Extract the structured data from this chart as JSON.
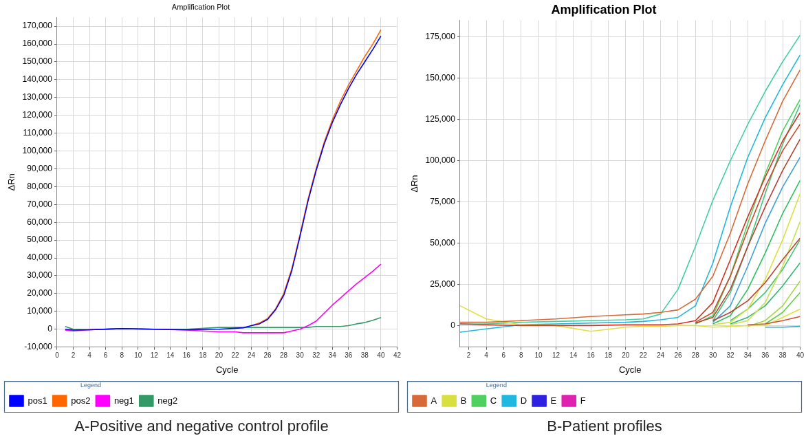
{
  "chart_data": [
    {
      "type": "line",
      "title": "Amplification Plot",
      "xlabel": "Cycle",
      "ylabel": "ΔRn",
      "legend_title": "Legend",
      "legend": "bottom",
      "grid": true,
      "marker": "none",
      "line_style": "solid",
      "xlim": [
        0,
        42
      ],
      "xticks": [
        0,
        2,
        4,
        6,
        8,
        10,
        12,
        14,
        16,
        18,
        20,
        22,
        24,
        26,
        28,
        30,
        32,
        34,
        36,
        38,
        40,
        42
      ],
      "ylim": [
        -10000,
        175000
      ],
      "yticks": [
        {
          "value": -10000,
          "label": "-10,000"
        },
        0,
        {
          "value": 10000,
          "label": "10,000"
        },
        {
          "value": 20000,
          "label": "20,000"
        },
        {
          "value": 30000,
          "label": "30,000"
        },
        {
          "value": 40000,
          "label": "40,000"
        },
        {
          "value": 50000,
          "label": "50,000"
        },
        {
          "value": 60000,
          "label": "60,000"
        },
        {
          "value": 70000,
          "label": "70,000"
        },
        {
          "value": 80000,
          "label": "80,000"
        },
        {
          "value": 90000,
          "label": "90,000"
        },
        {
          "value": 100000,
          "label": "100,000"
        },
        {
          "value": 110000,
          "label": "110,000"
        },
        {
          "value": 120000,
          "label": "120,000"
        },
        {
          "value": 130000,
          "label": "130,000"
        },
        {
          "value": 140000,
          "label": "140,000"
        },
        {
          "value": 150000,
          "label": "150,000"
        },
        {
          "value": 160000,
          "label": "160,000"
        },
        {
          "value": 170000,
          "label": "170,000"
        }
      ],
      "x": [
        1,
        2,
        4,
        8,
        12,
        16,
        20,
        22,
        23,
        24,
        25,
        26,
        27,
        28,
        29,
        30,
        31,
        32,
        33,
        34,
        35,
        36,
        37,
        38,
        39,
        40
      ],
      "annotations": [
        "A-Positive and negative control profile"
      ],
      "series": [
        {
          "name": "pos1",
          "color": "#0000ff",
          "values": [
            0,
            -500,
            -300,
            300,
            0,
            -300,
            0,
            500,
            800,
            2000,
            3000,
            5500,
            11000,
            19000,
            33000,
            52000,
            72000,
            89000,
            104000,
            116000,
            126000,
            135000,
            143000,
            150000,
            157000,
            164500
          ]
        },
        {
          "name": "pos2",
          "color": "#ff6600",
          "values": [
            null,
            null,
            null,
            null,
            null,
            null,
            null,
            null,
            null,
            2000,
            3500,
            6000,
            11500,
            20000,
            34000,
            53000,
            73000,
            90000,
            105000,
            117500,
            128000,
            137000,
            145000,
            153000,
            160000,
            168000
          ]
        },
        {
          "name": "neg1",
          "color": "#ff00ff",
          "values": [
            -500,
            -1000,
            -300,
            300,
            0,
            -500,
            -1500,
            -1500,
            -2000,
            -2000,
            -2000,
            -2000,
            -2000,
            -2000,
            -1000,
            0,
            2000,
            4500,
            9000,
            13500,
            17500,
            21500,
            25500,
            29000,
            32500,
            36500
          ]
        },
        {
          "name": "neg2",
          "color": "#339966",
          "values": [
            1500,
            0,
            -300,
            300,
            0,
            0,
            1000,
            1000,
            1000,
            1000,
            1000,
            1000,
            1000,
            1000,
            1000,
            1000,
            1000,
            1500,
            1500,
            1500,
            1500,
            2000,
            3000,
            3700,
            5000,
            6500
          ]
        }
      ]
    },
    {
      "type": "line",
      "title": "Amplification Plot",
      "xlabel": "Cycle",
      "ylabel": "ΔRn",
      "legend_title": "Legend",
      "legend": "bottom",
      "grid": true,
      "marker": "none",
      "line_style": "solid",
      "xlim": [
        1,
        40
      ],
      "xticks": [
        2,
        4,
        6,
        8,
        10,
        12,
        14,
        16,
        18,
        20,
        22,
        24,
        26,
        28,
        30,
        32,
        34,
        36,
        38,
        40
      ],
      "ylim": [
        -13000,
        185000
      ],
      "yticks": [
        0,
        {
          "value": 25000,
          "label": "25,000"
        },
        {
          "value": 50000,
          "label": "50,000"
        },
        {
          "value": 75000,
          "label": "75,000"
        },
        {
          "value": 100000,
          "label": "100,000"
        },
        {
          "value": 125000,
          "label": "125,000"
        },
        {
          "value": 150000,
          "label": "150,000"
        },
        {
          "value": 175000,
          "label": "175,000"
        }
      ],
      "x": [
        1,
        4,
        8,
        12,
        16,
        20,
        22,
        24,
        26,
        28,
        30,
        32,
        34,
        36,
        38,
        40
      ],
      "annotations": [
        "B-Patient profiles"
      ],
      "series": [
        {
          "name": "A",
          "color": "#d86a3a",
          "values": [
            2000,
            2000,
            3000,
            4000,
            5500,
            6500,
            7000,
            8000,
            9500,
            16000,
            30000,
            56000,
            86000,
            112000,
            136000,
            155000
          ]
        },
        {
          "color": "#d83020",
          "values": [
            1000,
            500,
            0,
            0,
            0,
            500,
            500,
            500,
            1000,
            3000,
            14000,
            40000,
            66000,
            90000,
            112000,
            129000
          ]
        },
        {
          "color": "#c84a2a",
          "values": [
            null,
            null,
            null,
            null,
            null,
            null,
            null,
            null,
            null,
            2000,
            8000,
            30000,
            58000,
            84000,
            106000,
            122000
          ]
        },
        {
          "color": "#b84030",
          "values": [
            null,
            null,
            null,
            null,
            null,
            null,
            null,
            null,
            null,
            1500,
            5000,
            22000,
            48000,
            72000,
            94000,
            113000
          ]
        },
        {
          "color": "#c04030",
          "values": [
            null,
            null,
            null,
            null,
            null,
            null,
            null,
            null,
            null,
            null,
            3000,
            8000,
            15000,
            26000,
            40000,
            53000
          ]
        },
        {
          "color": "#d05030",
          "values": [
            null,
            null,
            null,
            null,
            null,
            null,
            null,
            null,
            null,
            null,
            null,
            null,
            500,
            1000,
            3000,
            5500
          ]
        },
        {
          "name": "B",
          "color": "#d8e040",
          "values": [
            null,
            null,
            null,
            null,
            null,
            null,
            null,
            null,
            null,
            null,
            500,
            2000,
            10000,
            28000,
            52000,
            80000
          ]
        },
        {
          "color": "#c8e050",
          "values": [
            null,
            null,
            null,
            null,
            null,
            null,
            null,
            null,
            null,
            null,
            null,
            500,
            3000,
            14000,
            36000,
            63000
          ]
        },
        {
          "color": "#a0d840",
          "values": [
            null,
            null,
            null,
            null,
            null,
            null,
            null,
            null,
            null,
            null,
            null,
            null,
            -500,
            3000,
            12000,
            27000
          ]
        },
        {
          "color": "#e0e040",
          "values": [
            12000,
            4000,
            500,
            0,
            -3500,
            -1000,
            -500,
            -500,
            0,
            0,
            -1000,
            -500,
            0,
            0,
            5000,
            10000
          ]
        },
        {
          "name": "C",
          "color": "#50d060",
          "values": [
            null,
            null,
            null,
            null,
            null,
            null,
            null,
            null,
            null,
            1000,
            6000,
            30000,
            62000,
            92000,
            118000,
            137000
          ]
        },
        {
          "color": "#40c880",
          "values": [
            null,
            null,
            null,
            null,
            null,
            null,
            null,
            null,
            null,
            null,
            3000,
            20000,
            48000,
            80000,
            110000,
            134000
          ]
        },
        {
          "color": "#30c060",
          "values": [
            null,
            null,
            null,
            null,
            null,
            null,
            null,
            null,
            null,
            null,
            1000,
            6000,
            22000,
            44000,
            68000,
            88000
          ]
        },
        {
          "color": "#40c870",
          "values": [
            null,
            null,
            null,
            null,
            null,
            null,
            null,
            null,
            null,
            null,
            null,
            3000,
            10000,
            20000,
            34000,
            52000
          ]
        },
        {
          "color": "#30b870",
          "values": [
            null,
            null,
            null,
            null,
            null,
            null,
            null,
            null,
            null,
            null,
            null,
            1000,
            5000,
            12000,
            24000,
            38000
          ]
        },
        {
          "color": "#60d040",
          "values": [
            null,
            null,
            null,
            null,
            null,
            null,
            null,
            null,
            null,
            null,
            null,
            null,
            null,
            1000,
            8000,
            20000
          ]
        },
        {
          "name": "D",
          "color": "#20b8e0",
          "values": [
            -4000,
            -2000,
            500,
            1000,
            1500,
            2000,
            2500,
            3500,
            5000,
            12000,
            38000,
            72000,
            102000,
            126000,
            146000,
            164000
          ]
        },
        {
          "color": "#40d0a0",
          "values": [
            1000,
            1000,
            2000,
            2500,
            3000,
            3500,
            4000,
            7000,
            22000,
            48000,
            76000,
            100000,
            122000,
            142000,
            160000,
            176000
          ]
        },
        {
          "color": "#40a0d8",
          "values": [
            null,
            null,
            null,
            null,
            null,
            null,
            null,
            null,
            null,
            null,
            2000,
            12000,
            36000,
            62000,
            84000,
            102000
          ]
        },
        {
          "color": "#30a8d0",
          "values": [
            null,
            null,
            null,
            null,
            null,
            null,
            null,
            null,
            null,
            null,
            null,
            null,
            null,
            -1000,
            -1000,
            -500
          ]
        },
        {
          "name": "E",
          "color": "#3020e0",
          "values": [
            null,
            null,
            null,
            null,
            null,
            null,
            null,
            null,
            null,
            null,
            null,
            null,
            null,
            null,
            null,
            null
          ]
        },
        {
          "name": "F",
          "color": "#e020b0",
          "values": [
            null,
            null,
            null,
            null,
            null,
            null,
            null,
            null,
            null,
            null,
            null,
            null,
            null,
            null,
            null,
            null
          ]
        }
      ]
    }
  ]
}
